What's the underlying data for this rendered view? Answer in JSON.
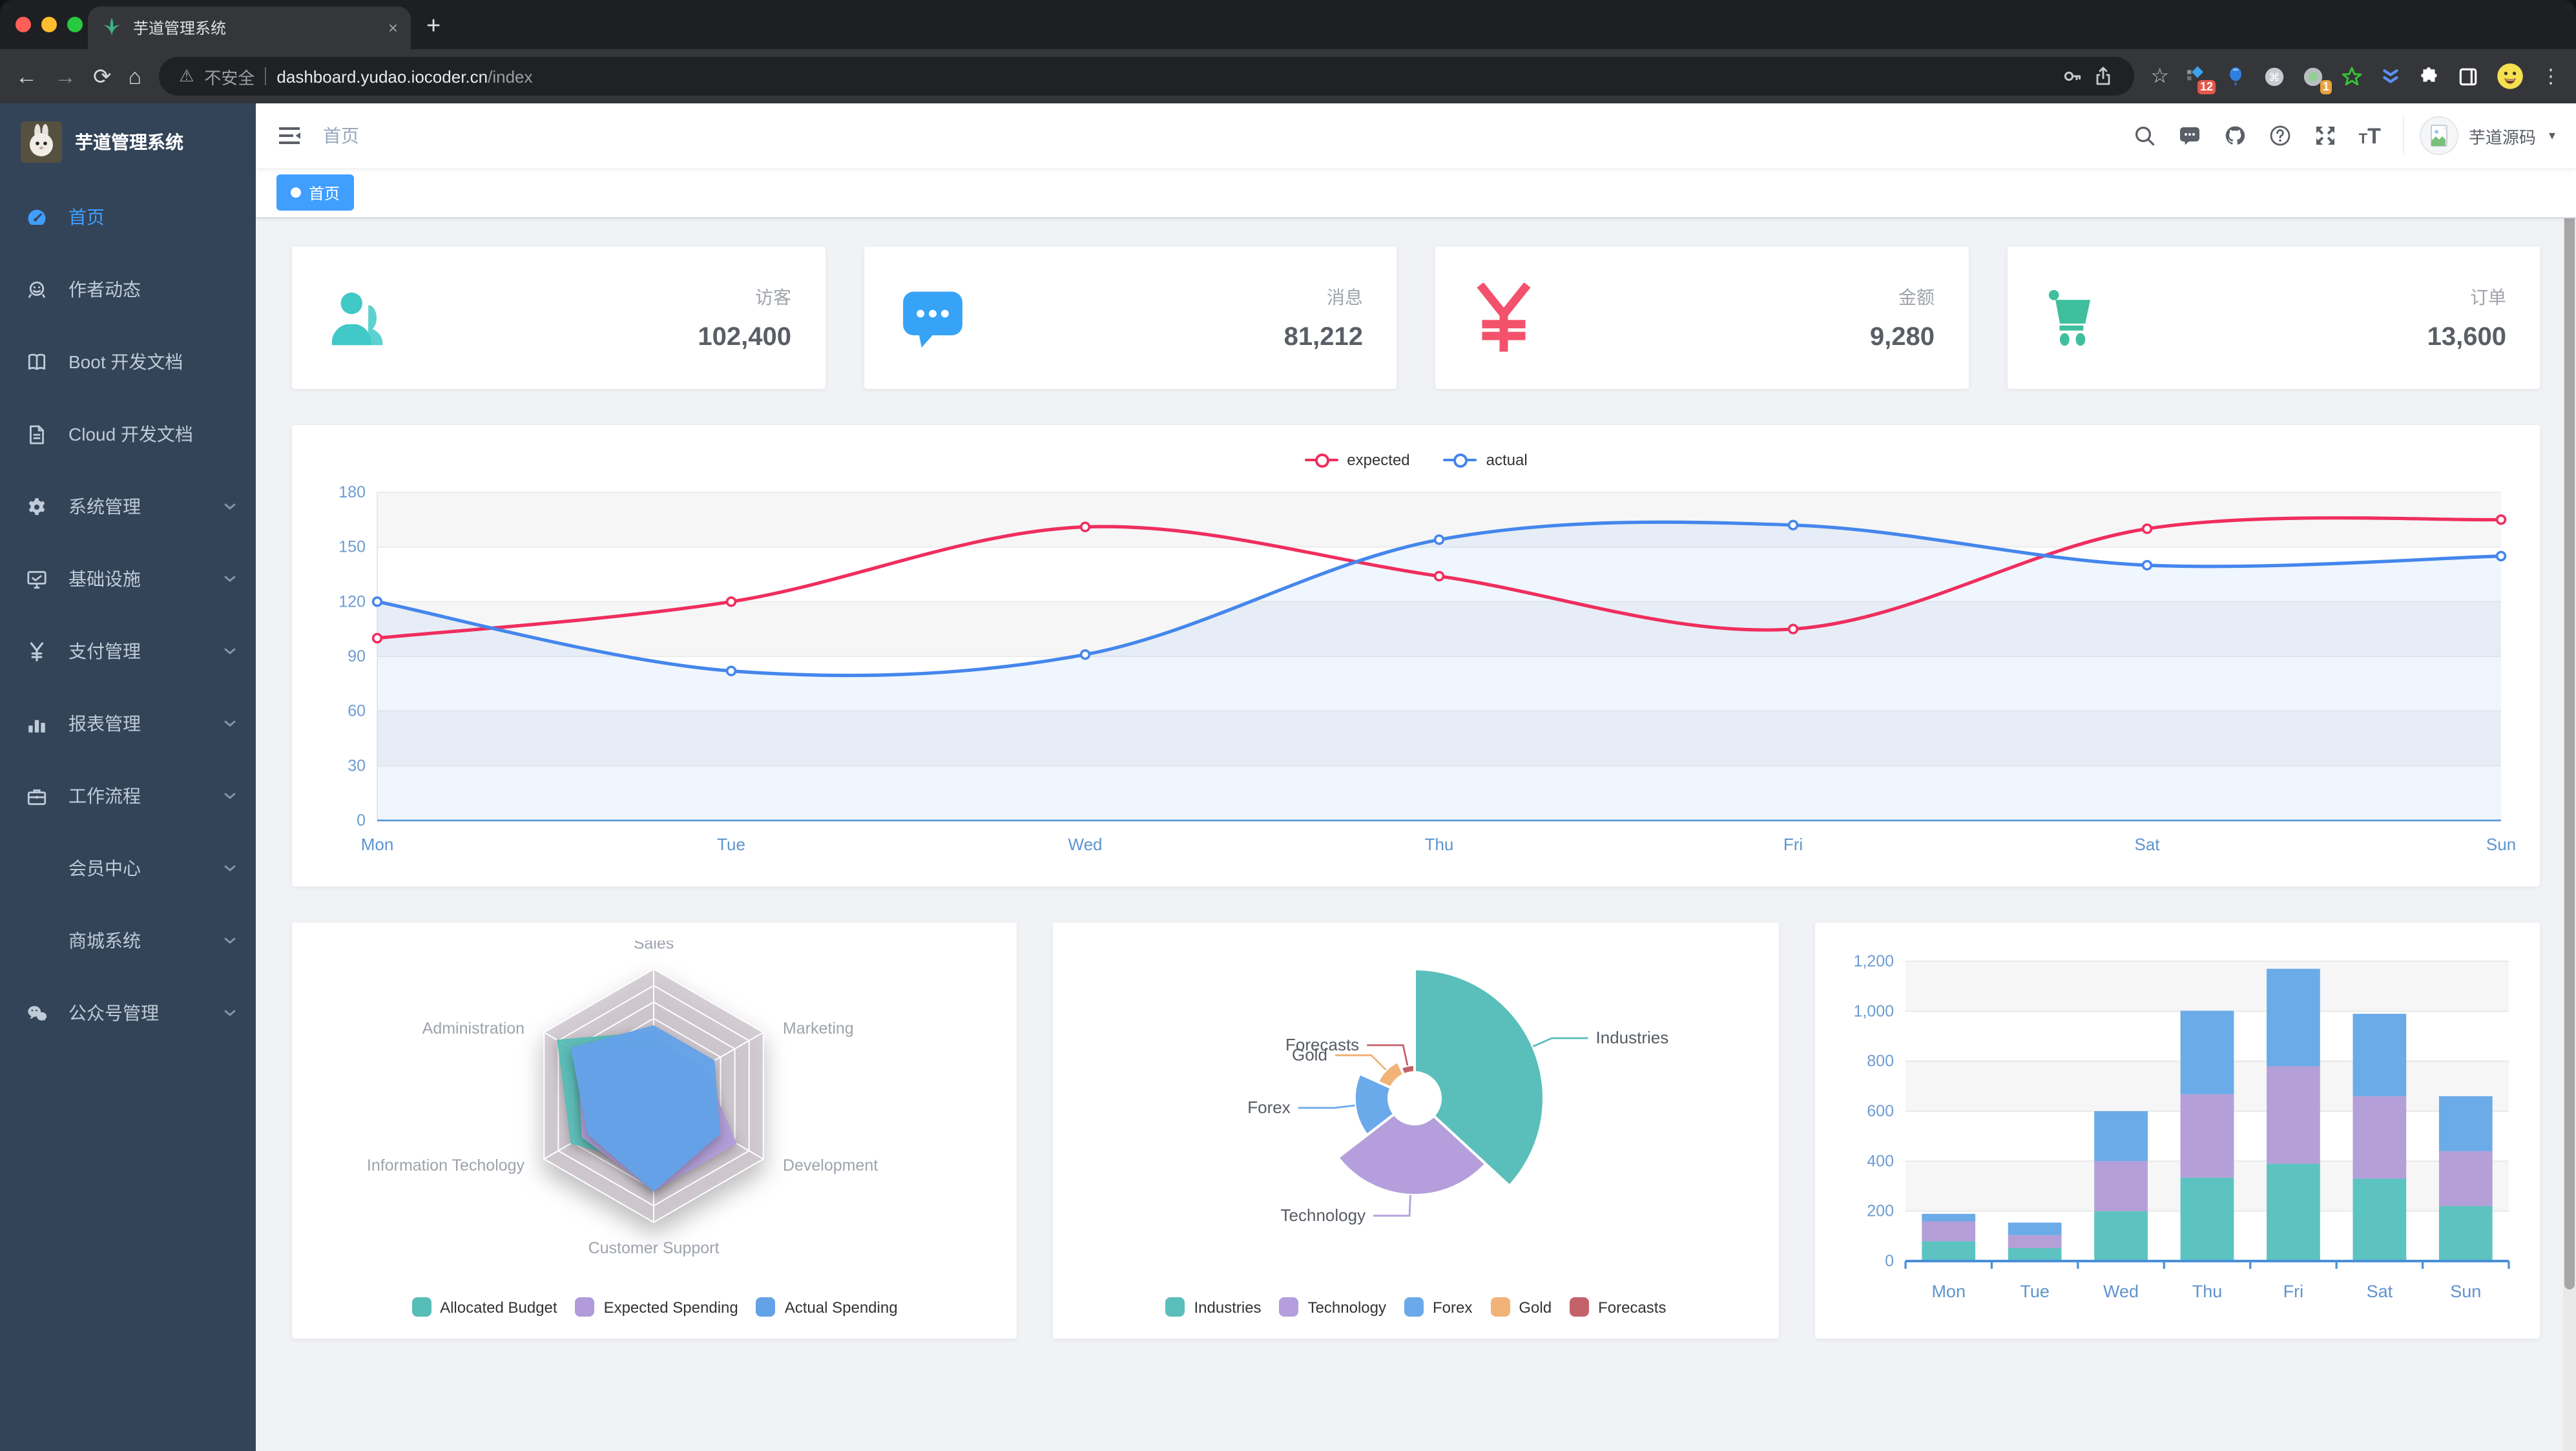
{
  "browser": {
    "tab": {
      "title": "芋道管理系统"
    },
    "url": {
      "security_label": "不安全",
      "host": "dashboard.yudao.iocoder.cn",
      "path": "/index"
    },
    "glyphs": {
      "close": "×",
      "plus": "+",
      "back": "←",
      "forward": "→",
      "reload": "⟳",
      "home": "⌂",
      "warning": "⚠",
      "star": "☆",
      "dots": "⋮",
      "caret": "▾"
    },
    "extensions": {
      "badge1": "12",
      "badge2": "1"
    }
  },
  "sidebar": {
    "app_title": "芋道管理系统",
    "items": [
      {
        "label": "首页",
        "icon": "dashboard-icon",
        "active": true,
        "arrow": false
      },
      {
        "label": "作者动态",
        "icon": "people-icon",
        "active": false,
        "arrow": false
      },
      {
        "label": "Boot 开发文档",
        "icon": "book-icon",
        "active": false,
        "arrow": false
      },
      {
        "label": "Cloud 开发文档",
        "icon": "document-icon",
        "active": false,
        "arrow": false
      },
      {
        "label": "系统管理",
        "icon": "gear-icon",
        "active": false,
        "arrow": true
      },
      {
        "label": "基础设施",
        "icon": "monitor-icon",
        "active": false,
        "arrow": true
      },
      {
        "label": "支付管理",
        "icon": "yen-icon",
        "active": false,
        "arrow": true
      },
      {
        "label": "报表管理",
        "icon": "chart-icon",
        "active": false,
        "arrow": true
      },
      {
        "label": "工作流程",
        "icon": "briefcase-icon",
        "active": false,
        "arrow": true
      },
      {
        "label": "会员中心",
        "icon": null,
        "active": false,
        "arrow": true
      },
      {
        "label": "商城系统",
        "icon": null,
        "active": false,
        "arrow": true
      },
      {
        "label": "公众号管理",
        "icon": "wechat-icon",
        "active": false,
        "arrow": true
      }
    ]
  },
  "header": {
    "breadcrumb": "首页",
    "username": "芋道源码",
    "font_small": "T",
    "font_big": "T"
  },
  "tags": [
    {
      "label": "首页",
      "active": true
    }
  ],
  "stats": [
    {
      "label": "访客",
      "value": "102,400",
      "icon": "peoples-icon",
      "color": "#40c9c6"
    },
    {
      "label": "消息",
      "value": "81,212",
      "icon": "message-icon",
      "color": "#36a3f7"
    },
    {
      "label": "金额",
      "value": "9,280",
      "icon": "money-icon",
      "color": "#f4516c"
    },
    {
      "label": "订单",
      "value": "13,600",
      "icon": "shopping-icon",
      "color": "#3fbf9d"
    }
  ],
  "chart_data": [
    {
      "type": "line",
      "x": [
        "Mon",
        "Tue",
        "Wed",
        "Thu",
        "Fri",
        "Sat",
        "Sun"
      ],
      "series": [
        {
          "name": "expected",
          "color": "#ef2e5e",
          "values": [
            100,
            120,
            161,
            134,
            105,
            160,
            165
          ]
        },
        {
          "name": "actual",
          "color": "#4486ec",
          "values": [
            120,
            82,
            91,
            154,
            162,
            140,
            145
          ]
        }
      ],
      "ylim": [
        0,
        180
      ],
      "ytick": 30,
      "grid": true,
      "legend_position": "top"
    },
    {
      "type": "radar",
      "indicators": [
        {
          "name": "Sales",
          "max": 10000
        },
        {
          "name": "Marketing",
          "max": 20000
        },
        {
          "name": "Development",
          "max": 20000
        },
        {
          "name": "Customer Support",
          "max": 20000
        },
        {
          "name": "Information Techology",
          "max": 20000
        },
        {
          "name": "Administration",
          "max": 16000
        }
      ],
      "series": [
        {
          "name": "Allocated Budget",
          "color": "#57bdb7",
          "values": [
            5000,
            7000,
            12000,
            11000,
            15000,
            14000
          ]
        },
        {
          "name": "Expected Spending",
          "color": "#b19cd9",
          "values": [
            4000,
            9000,
            15000,
            15000,
            13000,
            11000
          ]
        },
        {
          "name": "Actual Spending",
          "color": "#64a2e8",
          "values": [
            5500,
            11000,
            12000,
            15000,
            12000,
            12000
          ]
        }
      ],
      "legend_position": "bottom"
    },
    {
      "type": "pie",
      "rose": true,
      "slices": [
        {
          "name": "Industries",
          "value": 320,
          "color": "#5abfbb"
        },
        {
          "name": "Technology",
          "value": 240,
          "color": "#b49fdc"
        },
        {
          "name": "Forex",
          "value": 149,
          "color": "#6aa9ea"
        },
        {
          "name": "Gold",
          "value": 100,
          "color": "#f2b379"
        },
        {
          "name": "Forecasts",
          "value": 59,
          "color": "#c4626b"
        }
      ],
      "legend_position": "bottom"
    },
    {
      "type": "bar",
      "stacked": true,
      "categories": [
        "Mon",
        "Tue",
        "Wed",
        "Thu",
        "Fri",
        "Sat",
        "Sun"
      ],
      "series": [
        {
          "color": "#5cc3c0",
          "values": [
            79,
            52,
            200,
            334,
            390,
            330,
            220
          ]
        },
        {
          "color": "#b49fd8",
          "values": [
            80,
            52,
            200,
            334,
            390,
            330,
            220
          ]
        },
        {
          "color": "#6aabe8",
          "values": [
            30,
            50,
            200,
            334,
            390,
            330,
            220
          ]
        }
      ],
      "ylim": [
        0,
        1200
      ],
      "ytick": 200,
      "grid": true
    }
  ]
}
